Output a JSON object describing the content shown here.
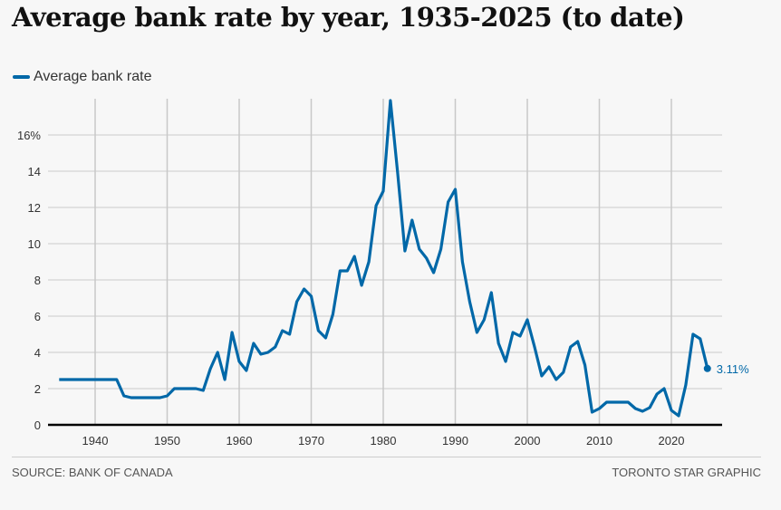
{
  "title": "Average bank rate by year, 1935-2025 (to date)",
  "footer": {
    "source": "SOURCE: BANK OF CANADA",
    "credit": "TORONTO STAR GRAPHIC"
  },
  "chart_data": {
    "type": "line",
    "title": "Average bank rate by year, 1935-2025 (to date)",
    "legend": "top-left",
    "grid": true,
    "xlim": [
      1935,
      2025
    ],
    "ylim": [
      0,
      18
    ],
    "x_ticks": [
      1940,
      1950,
      1960,
      1970,
      1980,
      1990,
      2000,
      2010,
      2020
    ],
    "y_ticks": [
      0,
      2,
      4,
      6,
      8,
      10,
      12,
      14,
      16
    ],
    "y_tick_labels": [
      "0",
      "2",
      "4",
      "6",
      "8",
      "10",
      "12",
      "14",
      "16%"
    ],
    "end_label": "3.11%",
    "color": "#0068a8",
    "series": [
      {
        "name": "Average bank rate",
        "x": [
          1935,
          1936,
          1937,
          1938,
          1939,
          1940,
          1941,
          1942,
          1943,
          1944,
          1945,
          1946,
          1947,
          1948,
          1949,
          1950,
          1951,
          1952,
          1953,
          1954,
          1955,
          1956,
          1957,
          1958,
          1959,
          1960,
          1961,
          1962,
          1963,
          1964,
          1965,
          1966,
          1967,
          1968,
          1969,
          1970,
          1971,
          1972,
          1973,
          1974,
          1975,
          1976,
          1977,
          1978,
          1979,
          1980,
          1981,
          1982,
          1983,
          1984,
          1985,
          1986,
          1987,
          1988,
          1989,
          1990,
          1991,
          1992,
          1993,
          1994,
          1995,
          1996,
          1997,
          1998,
          1999,
          2000,
          2001,
          2002,
          2003,
          2004,
          2005,
          2006,
          2007,
          2008,
          2009,
          2010,
          2011,
          2012,
          2013,
          2014,
          2015,
          2016,
          2017,
          2018,
          2019,
          2020,
          2021,
          2022,
          2023,
          2024,
          2025
        ],
        "y": [
          2.5,
          2.5,
          2.5,
          2.5,
          2.5,
          2.5,
          2.5,
          2.5,
          2.5,
          1.6,
          1.5,
          1.5,
          1.5,
          1.5,
          1.5,
          1.6,
          2.0,
          2.0,
          2.0,
          2.0,
          1.9,
          3.1,
          4.0,
          2.5,
          5.1,
          3.5,
          3.0,
          4.5,
          3.9,
          4.0,
          4.3,
          5.2,
          5.0,
          6.8,
          7.5,
          7.1,
          5.2,
          4.8,
          6.1,
          8.5,
          8.5,
          9.3,
          7.7,
          9.0,
          12.1,
          12.9,
          17.9,
          13.9,
          9.6,
          11.3,
          9.7,
          9.2,
          8.4,
          9.7,
          12.3,
          13.0,
          9.0,
          6.8,
          5.1,
          5.8,
          7.3,
          4.5,
          3.5,
          5.1,
          4.9,
          5.8,
          4.3,
          2.7,
          3.2,
          2.5,
          2.9,
          4.3,
          4.6,
          3.3,
          0.7,
          0.9,
          1.25,
          1.25,
          1.25,
          1.25,
          0.9,
          0.75,
          0.95,
          1.7,
          2.0,
          0.8,
          0.5,
          2.2,
          5.0,
          4.75,
          3.11
        ]
      }
    ]
  }
}
